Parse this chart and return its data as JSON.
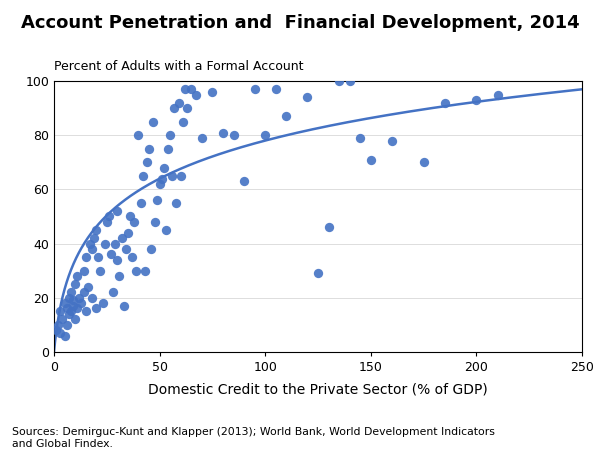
{
  "title": "Account Penetration and  Financial Development, 2014",
  "ylabel": "Percent of Adults with a Formal Account",
  "xlabel": "Domestic Credit to the Private Sector (% of GDP)",
  "source": "Sources: Demirguc-Kunt and Klapper (2013); World Bank, World Development Indicators\nand Global Findex.",
  "xlim": [
    0,
    250
  ],
  "ylim": [
    0,
    100
  ],
  "xticks": [
    0,
    50,
    100,
    150,
    200,
    250
  ],
  "yticks": [
    0,
    20,
    40,
    60,
    80,
    100
  ],
  "dot_color": "#4472C4",
  "line_color": "#4472C4",
  "scatter_x": [
    1,
    2,
    3,
    3,
    4,
    5,
    5,
    6,
    6,
    7,
    7,
    8,
    8,
    9,
    9,
    10,
    10,
    11,
    11,
    12,
    13,
    14,
    14,
    15,
    15,
    16,
    17,
    18,
    18,
    19,
    20,
    20,
    21,
    22,
    23,
    24,
    25,
    26,
    27,
    28,
    29,
    30,
    30,
    31,
    32,
    33,
    34,
    35,
    36,
    37,
    38,
    39,
    40,
    41,
    42,
    43,
    44,
    45,
    46,
    47,
    48,
    49,
    50,
    51,
    52,
    53,
    54,
    55,
    56,
    57,
    58,
    59,
    60,
    61,
    62,
    63,
    65,
    67,
    70,
    75,
    80,
    85,
    90,
    95,
    100,
    105,
    110,
    120,
    125,
    130,
    135,
    140,
    145,
    150,
    160,
    175,
    185,
    200,
    210
  ],
  "scatter_y": [
    8,
    10,
    7,
    15,
    12,
    6,
    18,
    10,
    16,
    14,
    20,
    15,
    22,
    17,
    19,
    12,
    25,
    16,
    28,
    20,
    18,
    22,
    30,
    15,
    35,
    24,
    40,
    20,
    38,
    42,
    16,
    45,
    35,
    30,
    18,
    40,
    48,
    50,
    36,
    22,
    40,
    34,
    52,
    28,
    42,
    17,
    38,
    44,
    50,
    35,
    48,
    30,
    80,
    55,
    65,
    30,
    70,
    75,
    38,
    85,
    48,
    56,
    62,
    64,
    68,
    45,
    75,
    80,
    65,
    90,
    55,
    92,
    65,
    85,
    97,
    90,
    97,
    95,
    79,
    96,
    81,
    80,
    63,
    97,
    80,
    97,
    87,
    94,
    29,
    46,
    100,
    100,
    79,
    71,
    78,
    70,
    92,
    93,
    95
  ],
  "curve_B": 0.4,
  "curve_target_x": 250,
  "curve_target_y": 97
}
